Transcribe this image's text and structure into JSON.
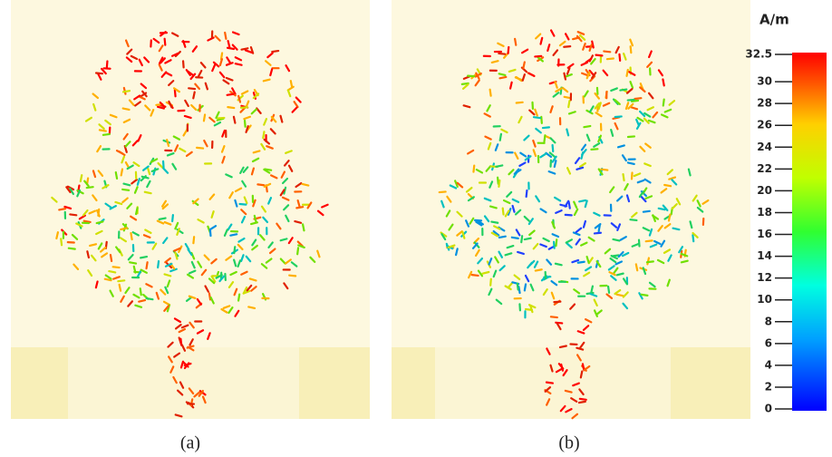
{
  "panels": [
    {
      "caption": "(a)"
    },
    {
      "caption": "(b)"
    }
  ],
  "colorbar": {
    "unit": "A/m",
    "lim": [
      0,
      32.5
    ],
    "ticks": [
      32.5,
      30,
      28,
      26,
      24,
      22,
      20,
      18,
      16,
      14,
      12,
      10,
      8,
      6,
      4,
      2,
      0
    ]
  }
}
